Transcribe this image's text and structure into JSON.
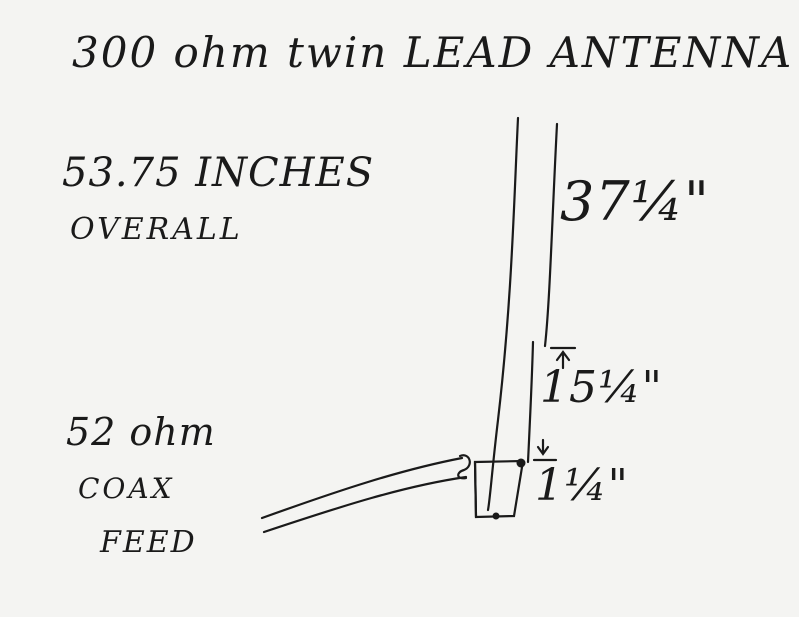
{
  "title": "300 ohm twin LEAD ANTENNA",
  "overall": {
    "value": "53.75 INCHES",
    "label": "OVERALL"
  },
  "lengths": {
    "top": "37¼\"",
    "middle": "15¼\"",
    "bottom": "1¼\""
  },
  "feed": {
    "line1": "52 ohm",
    "line2": "COAX",
    "line3": "FEED"
  },
  "colors": {
    "ink": "#1a1a1a",
    "paper": "#f4f4f2"
  }
}
